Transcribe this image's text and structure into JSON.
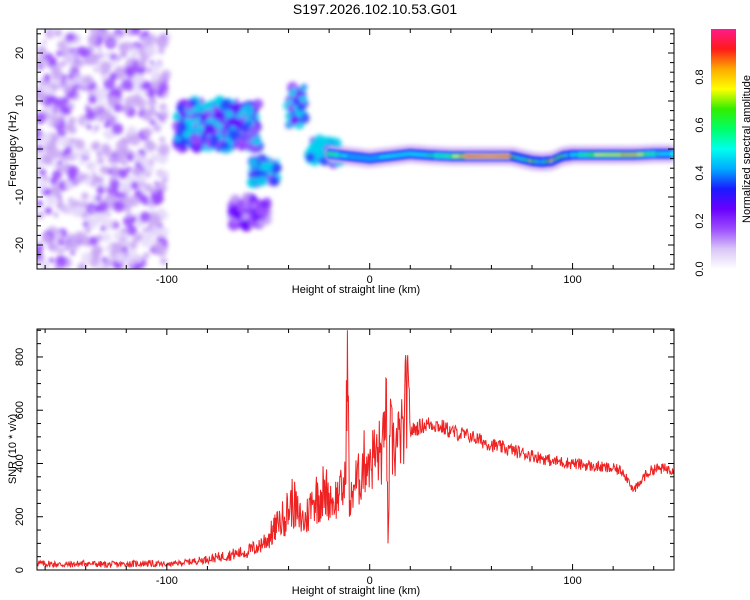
{
  "title": "S197.2026.102.10.53.G01",
  "chart_data": [
    {
      "type": "heatmap",
      "name": "spectrogram",
      "xlabel": "Height of straight line (km)",
      "ylabel": "Frequency (Hz)",
      "xlim": [
        -164,
        150
      ],
      "ylim": [
        -25,
        25
      ],
      "xticks": [
        -100,
        0,
        100
      ],
      "yticks": [
        -20,
        -10,
        0,
        10,
        20
      ],
      "colorbar": {
        "label": "Normalized spectral amplitude",
        "range": [
          0,
          1
        ],
        "ticks": [
          0.0,
          0.2,
          0.4,
          0.6,
          0.8
        ],
        "tick_labels": [
          "0.0",
          "0.2",
          "0.4",
          "0.6",
          "0.8"
        ],
        "colors": [
          "#ffffff",
          "#d9c6f7",
          "#9b4dff",
          "#6a00ff",
          "#1a1aff",
          "#00aaff",
          "#00ffee",
          "#00ff66",
          "#33ee00",
          "#ffff00",
          "#ffaa00",
          "#ff1a1a",
          "#ff1a8c"
        ]
      },
      "features": [
        {
          "label": "noise",
          "x_range": [
            -164,
            -100
          ],
          "y_range": [
            -25,
            25
          ],
          "level": 0.05
        },
        {
          "label": "cluster-upper",
          "x_range": [
            -95,
            -55
          ],
          "y_range": [
            0,
            10
          ],
          "level": 0.2
        },
        {
          "label": "cluster-upper-2",
          "x_range": [
            -40,
            -32
          ],
          "y_range": [
            5,
            13
          ],
          "level": 0.25
        },
        {
          "label": "cluster-lower",
          "x_range": [
            -58,
            -45
          ],
          "y_range": [
            -7,
            -2
          ],
          "level": 0.25
        },
        {
          "label": "cluster-tail",
          "x_range": [
            -68,
            -50
          ],
          "y_range": [
            -16,
            -10
          ],
          "level": 0.1
        },
        {
          "label": "line-start",
          "x_range": [
            -30,
            -15
          ],
          "y_range": [
            -3,
            2
          ],
          "level": 0.35
        },
        {
          "label": "main-line",
          "x_range": [
            -15,
            150
          ],
          "y_range": [
            -2.5,
            -0.5
          ],
          "level": 0.7
        }
      ],
      "main_line": {
        "x": [
          -20,
          -10,
          0,
          10,
          20,
          30,
          40,
          50,
          60,
          70,
          75,
          80,
          85,
          90,
          95,
          100,
          110,
          120,
          130,
          140,
          150
        ],
        "freq": [
          -1,
          -1.5,
          -2,
          -1.5,
          -1,
          -1.3,
          -1.5,
          -1.5,
          -1.5,
          -1.5,
          -2,
          -2.5,
          -2.7,
          -2.5,
          -1.5,
          -1.2,
          -1.2,
          -1.2,
          -1.2,
          -1,
          -1
        ],
        "amplitude": [
          0.7,
          0.45,
          0.4,
          0.5,
          0.5,
          0.55,
          0.65,
          0.95,
          0.95,
          0.95,
          0.6,
          0.9,
          0.55,
          0.9,
          0.85,
          0.5,
          0.7,
          0.75,
          0.85,
          0.6,
          0.45
        ]
      }
    },
    {
      "type": "line",
      "name": "snr",
      "xlabel": "Height of straight line (km)",
      "ylabel": "SNR (10 * v/v)",
      "xlim": [
        -164,
        150
      ],
      "ylim": [
        0,
        905
      ],
      "xticks": [
        -100,
        0,
        100
      ],
      "yticks": [
        0,
        200,
        400,
        600,
        800
      ],
      "color": "#ee2222",
      "series": [
        {
          "name": "SNR",
          "x": [
            -164,
            -150,
            -140,
            -130,
            -120,
            -110,
            -100,
            -90,
            -80,
            -70,
            -60,
            -55,
            -50,
            -45,
            -42,
            -40,
            -38,
            -35,
            -32,
            -30,
            -28,
            -25,
            -22,
            -20,
            -18,
            -15,
            -12,
            -11,
            -10,
            -8,
            -5,
            -3,
            0,
            2,
            5,
            7,
            8,
            9,
            10,
            12,
            15,
            17,
            18,
            20,
            25,
            30,
            35,
            40,
            50,
            60,
            70,
            80,
            90,
            100,
            110,
            120,
            125,
            128,
            130,
            133,
            135,
            140,
            150
          ],
          "y": [
            25,
            20,
            25,
            20,
            22,
            25,
            20,
            30,
            40,
            55,
            70,
            90,
            120,
            170,
            200,
            230,
            260,
            200,
            180,
            220,
            260,
            280,
            300,
            290,
            260,
            280,
            320,
            900,
            200,
            320,
            340,
            400,
            430,
            420,
            440,
            460,
            720,
            100,
            500,
            460,
            480,
            520,
            680,
            520,
            540,
            550,
            540,
            520,
            500,
            470,
            450,
            430,
            410,
            400,
            390,
            380,
            370,
            330,
            300,
            320,
            350,
            380,
            380
          ]
        }
      ]
    }
  ]
}
